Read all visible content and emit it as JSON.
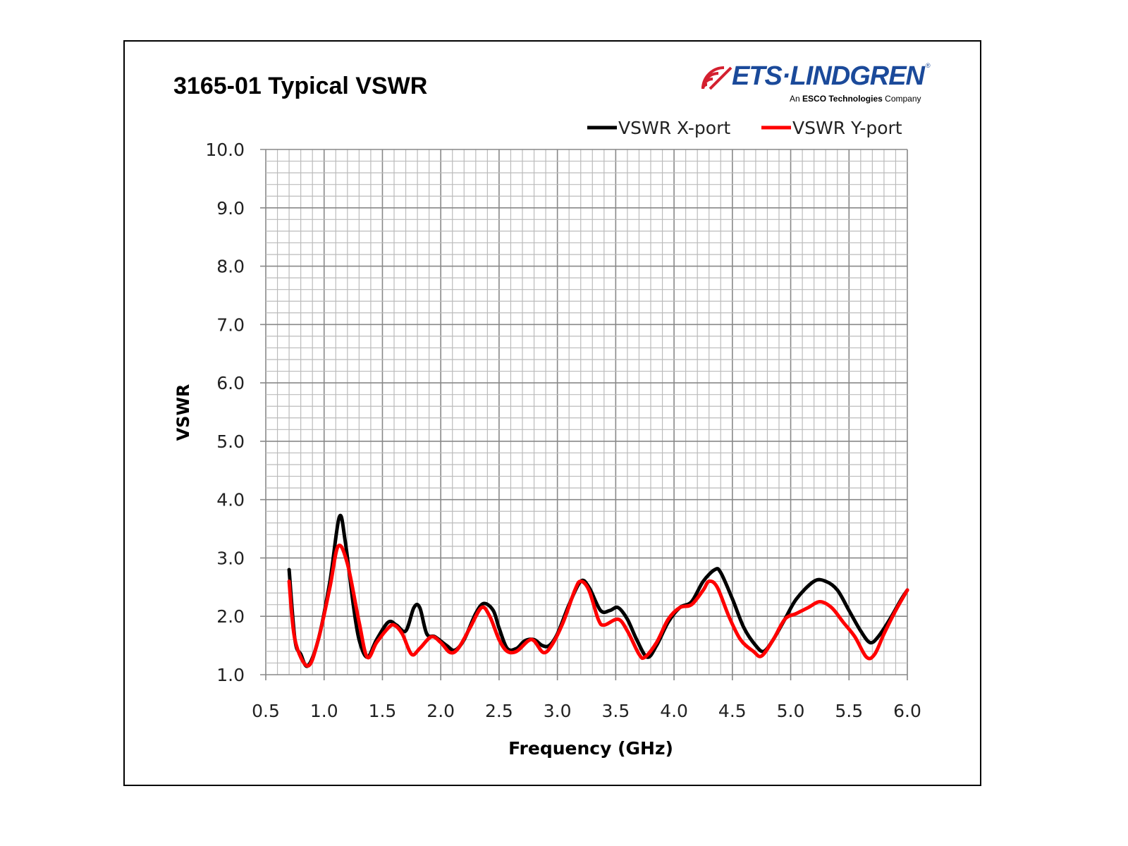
{
  "logo": {
    "brand": "ETS·LINDGREN",
    "tagline_prefix": "An ",
    "tagline_bold": "ESCO Technologies",
    "tagline_suffix": " Company",
    "registered": "®"
  },
  "chart_data": {
    "type": "line",
    "title": "3165-01 Typical VSWR",
    "xlabel": "Frequency (GHz)",
    "ylabel": "VSWR",
    "xlim": [
      0.5,
      6.0
    ],
    "ylim": [
      1.0,
      10.0
    ],
    "xticks": [
      "0.5",
      "1.0",
      "1.5",
      "2.0",
      "2.5",
      "3.0",
      "3.5",
      "4.0",
      "4.5",
      "5.0",
      "5.5",
      "6.0"
    ],
    "yticks": [
      "1.0",
      "2.0",
      "3.0",
      "4.0",
      "5.0",
      "6.0",
      "7.0",
      "8.0",
      "9.0",
      "10.0"
    ],
    "grid": true,
    "legend_position": "top-right",
    "series": [
      {
        "name": "VSWR X-port",
        "color": "#000000",
        "x": [
          0.7,
          0.75,
          0.8,
          0.86,
          0.95,
          1.05,
          1.13,
          1.18,
          1.25,
          1.3,
          1.37,
          1.45,
          1.55,
          1.62,
          1.7,
          1.77,
          1.82,
          1.88,
          1.95,
          2.05,
          2.12,
          2.2,
          2.3,
          2.37,
          2.45,
          2.5,
          2.57,
          2.65,
          2.72,
          2.8,
          2.87,
          2.93,
          3.0,
          3.1,
          3.2,
          3.27,
          3.37,
          3.45,
          3.52,
          3.6,
          3.68,
          3.77,
          3.85,
          3.95,
          4.05,
          4.15,
          4.25,
          4.35,
          4.4,
          4.5,
          4.6,
          4.7,
          4.77,
          4.85,
          4.95,
          5.05,
          5.2,
          5.3,
          5.4,
          5.5,
          5.6,
          5.68,
          5.75,
          5.85,
          5.95,
          6.0
        ],
        "y": [
          2.8,
          1.6,
          1.35,
          1.15,
          1.6,
          2.6,
          3.7,
          3.3,
          2.2,
          1.6,
          1.3,
          1.6,
          1.9,
          1.85,
          1.75,
          2.15,
          2.15,
          1.7,
          1.65,
          1.5,
          1.42,
          1.6,
          2.05,
          2.22,
          2.1,
          1.8,
          1.45,
          1.45,
          1.58,
          1.6,
          1.5,
          1.5,
          1.7,
          2.2,
          2.6,
          2.5,
          2.1,
          2.1,
          2.15,
          1.95,
          1.6,
          1.3,
          1.5,
          1.9,
          2.15,
          2.25,
          2.6,
          2.8,
          2.75,
          2.3,
          1.8,
          1.5,
          1.4,
          1.6,
          1.95,
          2.3,
          2.6,
          2.6,
          2.45,
          2.1,
          1.75,
          1.55,
          1.65,
          1.95,
          2.3,
          2.45
        ]
      },
      {
        "name": "VSWR Y-port",
        "color": "#ff0000",
        "x": [
          0.7,
          0.75,
          0.86,
          0.95,
          1.05,
          1.12,
          1.2,
          1.3,
          1.37,
          1.45,
          1.55,
          1.6,
          1.67,
          1.75,
          1.82,
          1.92,
          2.0,
          2.08,
          2.15,
          2.25,
          2.35,
          2.42,
          2.5,
          2.57,
          2.65,
          2.75,
          2.8,
          2.88,
          2.95,
          3.05,
          3.15,
          3.2,
          3.27,
          3.35,
          3.4,
          3.52,
          3.6,
          3.7,
          3.75,
          3.85,
          3.95,
          4.05,
          4.15,
          4.25,
          4.3,
          4.37,
          4.47,
          4.57,
          4.68,
          4.75,
          4.85,
          4.95,
          5.05,
          5.15,
          5.25,
          5.35,
          5.45,
          5.55,
          5.65,
          5.72,
          5.8,
          5.9,
          6.0
        ],
        "y": [
          2.6,
          1.6,
          1.15,
          1.6,
          2.5,
          3.2,
          2.9,
          1.9,
          1.3,
          1.55,
          1.8,
          1.85,
          1.7,
          1.35,
          1.45,
          1.65,
          1.55,
          1.38,
          1.45,
          1.8,
          2.15,
          2.0,
          1.6,
          1.4,
          1.4,
          1.58,
          1.58,
          1.38,
          1.5,
          1.9,
          2.45,
          2.6,
          2.45,
          1.95,
          1.85,
          1.95,
          1.75,
          1.35,
          1.3,
          1.55,
          1.95,
          2.15,
          2.2,
          2.45,
          2.6,
          2.5,
          2.0,
          1.6,
          1.4,
          1.32,
          1.6,
          1.95,
          2.05,
          2.15,
          2.25,
          2.15,
          1.9,
          1.65,
          1.3,
          1.35,
          1.7,
          2.1,
          2.45
        ]
      }
    ]
  }
}
